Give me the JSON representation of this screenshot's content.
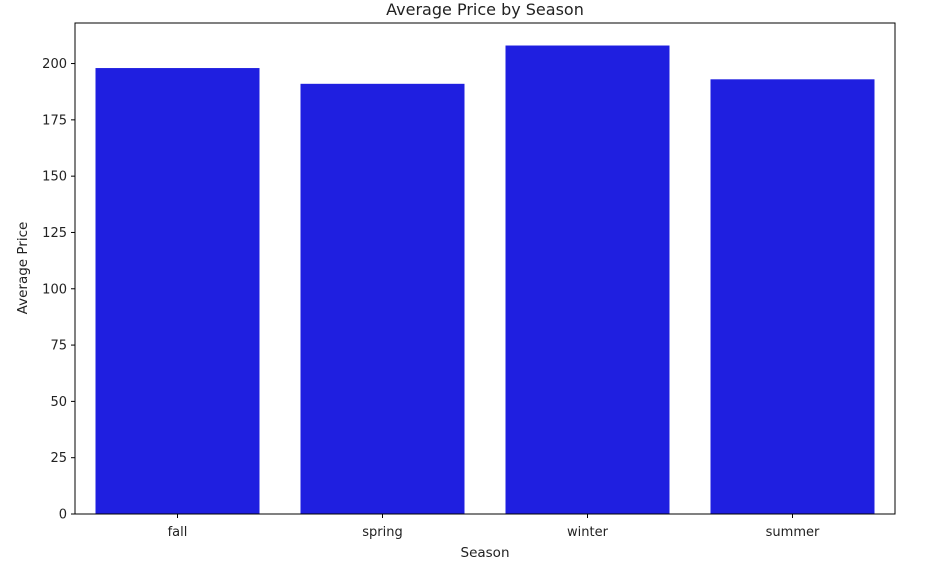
{
  "chart_data": {
    "type": "bar",
    "title": "Average Price by Season",
    "xlabel": "Season",
    "ylabel": "Average Price",
    "categories": [
      "fall",
      "spring",
      "winter",
      "summer"
    ],
    "values": [
      198,
      191,
      208,
      193
    ],
    "ylim": [
      0,
      218
    ],
    "yticks": [
      0,
      25,
      50,
      75,
      100,
      125,
      150,
      175,
      200
    ],
    "grid": false,
    "bar_color": "#1f1fe0"
  }
}
